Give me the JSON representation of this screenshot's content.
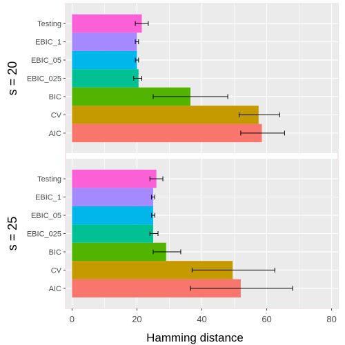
{
  "chart_data": {
    "type": "bar",
    "orientation": "horizontal",
    "categories": [
      "AIC",
      "CV",
      "BIC",
      "EBIC_025",
      "EBIC_05",
      "EBIC_1",
      "Testing"
    ],
    "colors": {
      "AIC": "#F8766D",
      "CV": "#C49A00",
      "BIC": "#53B400",
      "EBIC_025": "#00C094",
      "EBIC_05": "#00B6EB",
      "EBIC_1": "#A58AFF",
      "Testing": "#FB61D7"
    },
    "panels": [
      {
        "facet_label": "s = 20",
        "values": [
          58.5,
          57.5,
          36.5,
          20.5,
          20.0,
          20.0,
          21.5
        ],
        "error_low": [
          52.0,
          51.5,
          25.0,
          19.0,
          19.5,
          19.5,
          19.5
        ],
        "error_high": [
          65.5,
          64.0,
          48.0,
          21.5,
          20.5,
          20.5,
          23.5
        ]
      },
      {
        "facet_label": "s = 25",
        "values": [
          52.0,
          49.5,
          29.0,
          25.0,
          25.0,
          25.0,
          26.0
        ],
        "error_low": [
          36.5,
          37.0,
          25.0,
          24.0,
          24.5,
          24.5,
          24.0
        ],
        "error_high": [
          68.0,
          62.5,
          33.5,
          26.5,
          25.5,
          25.5,
          28.0
        ]
      }
    ],
    "xlabel": "Hamming distance",
    "ylabel": "",
    "xlim": [
      -2,
      82
    ],
    "x_ticks": [
      0,
      20,
      40,
      60,
      80
    ],
    "grid": true,
    "legend": "none",
    "panel_background": "#EBEBEB",
    "grid_color": "#FFFFFF"
  }
}
